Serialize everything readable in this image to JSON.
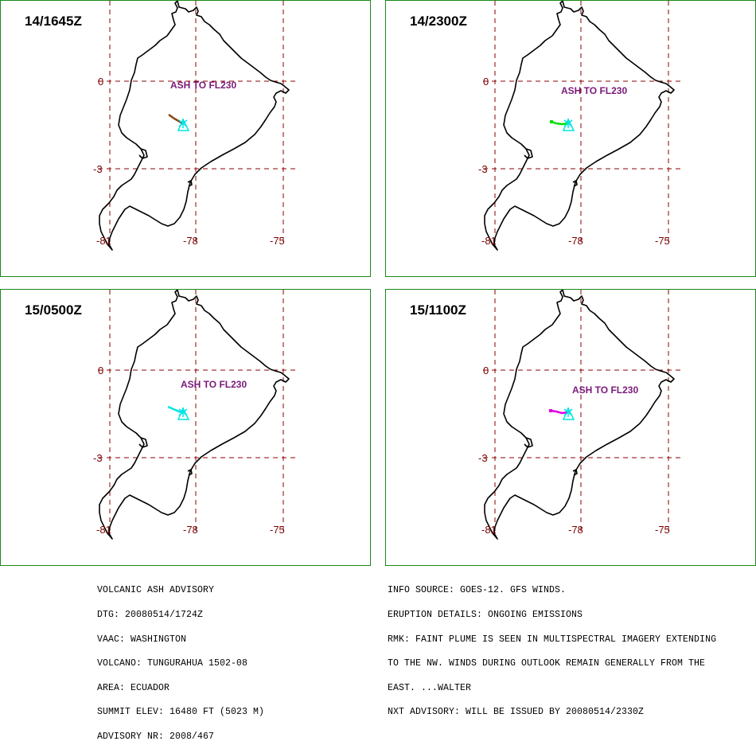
{
  "panels": [
    {
      "time": "14/1645Z",
      "ash_label": "ASH TO FL230",
      "plume_color": "#8b4513"
    },
    {
      "time": "14/2300Z",
      "ash_label": "ASH TO FL230",
      "plume_color": "#00e000"
    },
    {
      "time": "15/0500Z",
      "ash_label": "ASH TO FL230",
      "plume_color": "#00e5e5"
    },
    {
      "time": "15/1100Z",
      "ash_label": "ASH TO FL230",
      "plume_color": "#e000e0"
    }
  ],
  "axes": {
    "lat_labels": [
      "0",
      "-3"
    ],
    "lon_labels": [
      "-81",
      "-78",
      "-75"
    ]
  },
  "volcano_marker_color": "#00e5e5",
  "advisory_left": [
    "VOLCANIC ASH ADVISORY",
    "DTG: 20080514/1724Z",
    "VAAC: WASHINGTON",
    "VOLCANO: TUNGURAHUA 1502-08",
    "AREA: ECUADOR",
    "SUMMIT ELEV: 16480 FT (5023 M)",
    "ADVISORY NR: 2008/467"
  ],
  "advisory_right": [
    "INFO SOURCE: GOES-12. GFS WINDS.",
    "ERUPTION DETAILS: ONGOING EMISSIONS",
    "RMK: FAINT PLUME IS SEEN IN MULTISPECTRAL IMAGERY EXTENDING",
    "TO THE NW. WINDS DURING OUTLOOK REMAIN GENERALLY FROM THE",
    "EAST. ...WALTER",
    "NXT ADVISORY: WILL BE ISSUED BY 20080514/2330Z"
  ]
}
